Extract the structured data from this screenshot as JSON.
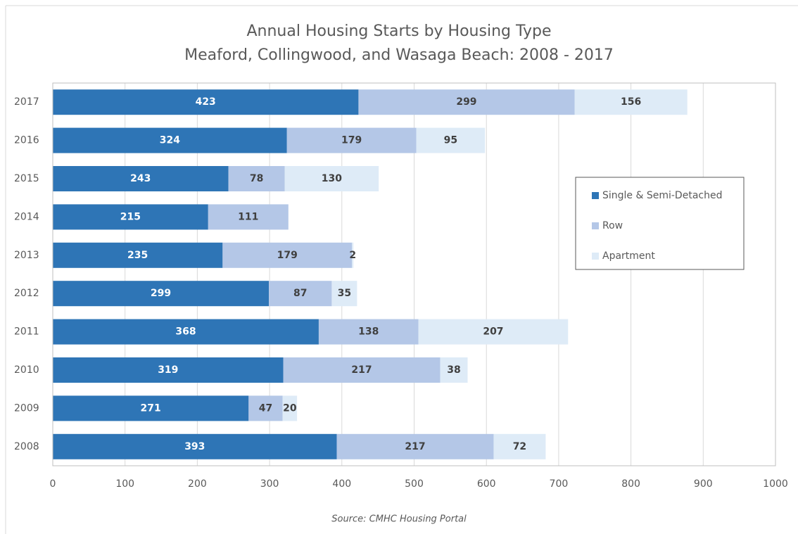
{
  "chart_data": {
    "type": "stacked_bar_horizontal",
    "title": "Annual Housing Starts by Housing Type",
    "subtitle": "Meaford, Collingwood, and Wasaga Beach: 2008 - 2017",
    "source": "Source: CMHC Housing Portal",
    "categories": [
      "2017",
      "2016",
      "2015",
      "2014",
      "2013",
      "2012",
      "2011",
      "2010",
      "2009",
      "2008"
    ],
    "series": [
      {
        "name": "Single & Semi-Detached",
        "color": "#2e75b6",
        "values": [
          423,
          324,
          243,
          215,
          235,
          299,
          368,
          319,
          271,
          393
        ]
      },
      {
        "name": "Row",
        "color": "#b4c7e7",
        "values": [
          299,
          179,
          78,
          111,
          179,
          87,
          138,
          217,
          47,
          217
        ]
      },
      {
        "name": "Apartment",
        "color": "#deebf7",
        "values": [
          156,
          95,
          130,
          null,
          2,
          35,
          207,
          38,
          20,
          72
        ]
      }
    ],
    "xlim": [
      0,
      1000
    ],
    "xticks": [
      0,
      100,
      200,
      300,
      400,
      500,
      600,
      700,
      800,
      900,
      1000
    ],
    "grid": true,
    "legend": "right"
  }
}
